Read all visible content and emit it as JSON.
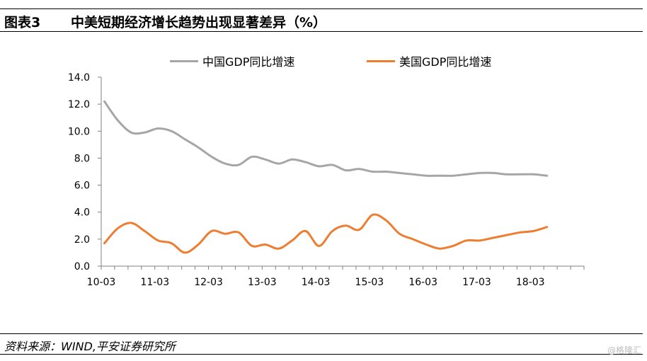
{
  "header": {
    "figure_label": "图表3",
    "title": "中美短期经济增长趋势出现显著差异（%）"
  },
  "footer": {
    "source": "资料来源：WIND,平安证券研究所",
    "watermark": "@格隆汇"
  },
  "chart_data": {
    "type": "line",
    "title": "中美短期经济增长趋势出现显著差异（%）",
    "xlabel": "",
    "ylabel": "",
    "ylim": [
      0,
      14
    ],
    "yticks": [
      "0.0",
      "2.0",
      "4.0",
      "6.0",
      "8.0",
      "10.0",
      "12.0",
      "14.0"
    ],
    "xticks": [
      "10-03",
      "11-03",
      "12-03",
      "13-03",
      "14-03",
      "15-03",
      "16-03",
      "17-03",
      "18-03"
    ],
    "grid": false,
    "legend_position": "top",
    "x": [
      "10-03",
      "10-06",
      "10-09",
      "10-12",
      "11-03",
      "11-06",
      "11-09",
      "11-12",
      "12-03",
      "12-06",
      "12-09",
      "12-12",
      "13-03",
      "13-06",
      "13-09",
      "13-12",
      "14-03",
      "14-06",
      "14-09",
      "14-12",
      "15-03",
      "15-06",
      "15-09",
      "15-12",
      "16-03",
      "16-06",
      "16-09",
      "16-12",
      "17-03",
      "17-06",
      "17-09",
      "17-12",
      "18-03",
      "18-06"
    ],
    "series": [
      {
        "name": "中国GDP同比增速",
        "color": "#A6A6A6",
        "values": [
          12.2,
          10.8,
          9.9,
          9.9,
          10.2,
          10.0,
          9.4,
          8.8,
          8.1,
          7.6,
          7.5,
          8.1,
          7.9,
          7.6,
          7.9,
          7.7,
          7.4,
          7.5,
          7.1,
          7.2,
          7.0,
          7.0,
          6.9,
          6.8,
          6.7,
          6.7,
          6.7,
          6.8,
          6.9,
          6.9,
          6.8,
          6.8,
          6.8,
          6.7
        ]
      },
      {
        "name": "美国GDP同比增速",
        "color": "#ED7D31",
        "values": [
          1.7,
          2.8,
          3.2,
          2.6,
          1.9,
          1.7,
          1.0,
          1.6,
          2.6,
          2.4,
          2.5,
          1.5,
          1.6,
          1.3,
          1.9,
          2.6,
          1.5,
          2.6,
          3.0,
          2.7,
          3.8,
          3.4,
          2.4,
          2.0,
          1.6,
          1.3,
          1.5,
          1.9,
          1.9,
          2.1,
          2.3,
          2.5,
          2.6,
          2.9
        ]
      }
    ]
  }
}
